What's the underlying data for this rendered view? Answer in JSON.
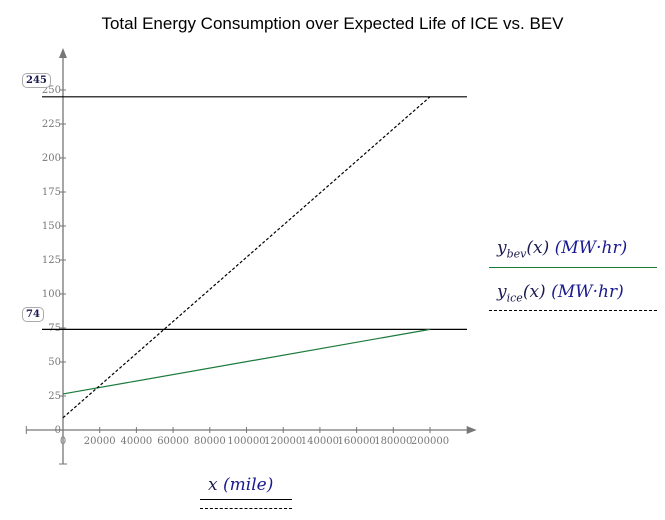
{
  "chart_data": {
    "type": "line",
    "title": "Total Energy Consumption over Expected Life of ICE vs. BEV",
    "xlabel": {
      "var": "x",
      "unit": "mile"
    },
    "xlim": [
      -20000,
      220000
    ],
    "ylim": [
      -25,
      275
    ],
    "x_ticks": [
      0,
      20000,
      40000,
      60000,
      80000,
      100000,
      120000,
      140000,
      160000,
      180000,
      200000
    ],
    "y_ticks": [
      0,
      25,
      50,
      75,
      100,
      125,
      150,
      175,
      200,
      225,
      250
    ],
    "grid": false,
    "legend_placement": "right",
    "series": [
      {
        "name": "y_bev(x) (MW·hr)",
        "var": "y",
        "sub": "bev",
        "arg": "(x)",
        "unit": "(MW·hr)",
        "color": "#1a7a3a",
        "style": "solid",
        "x": [
          0,
          200000
        ],
        "y": [
          26.5,
          74
        ]
      },
      {
        "name": "y_ice(x) (MW·hr)",
        "var": "y",
        "sub": "ice",
        "arg": "(x)",
        "unit": "(MW·hr)",
        "color": "#000000",
        "style": "dashed",
        "x": [
          0,
          200000
        ],
        "y": [
          9,
          245
        ]
      }
    ],
    "markers": [
      {
        "label": "245",
        "y": 245
      },
      {
        "label": "74",
        "y": 74
      }
    ]
  }
}
